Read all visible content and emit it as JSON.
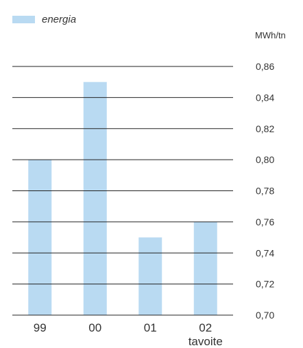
{
  "colors": {
    "bar": "#b9daf2",
    "gridline": "#222222",
    "text": "#333333"
  },
  "legend": {
    "label": "energia"
  },
  "chart_data": {
    "type": "bar",
    "categories": [
      "99",
      "00",
      "01",
      "02"
    ],
    "category_sublabels": [
      "",
      "",
      "",
      "tavoite"
    ],
    "series": [
      {
        "name": "energia",
        "values": [
          0.8,
          0.85,
          0.75,
          0.76
        ]
      }
    ],
    "ylabel": "MWh/tn",
    "ylim": [
      0.7,
      0.86
    ],
    "yticks": [
      0.86,
      0.84,
      0.82,
      0.8,
      0.78,
      0.76,
      0.74,
      0.72,
      0.7
    ],
    "ytick_labels": [
      "0,86",
      "0,84",
      "0,82",
      "0,80",
      "0,78",
      "0,76",
      "0,74",
      "0,72",
      "0,70"
    ],
    "legend_position": "top-left",
    "grid": true
  }
}
